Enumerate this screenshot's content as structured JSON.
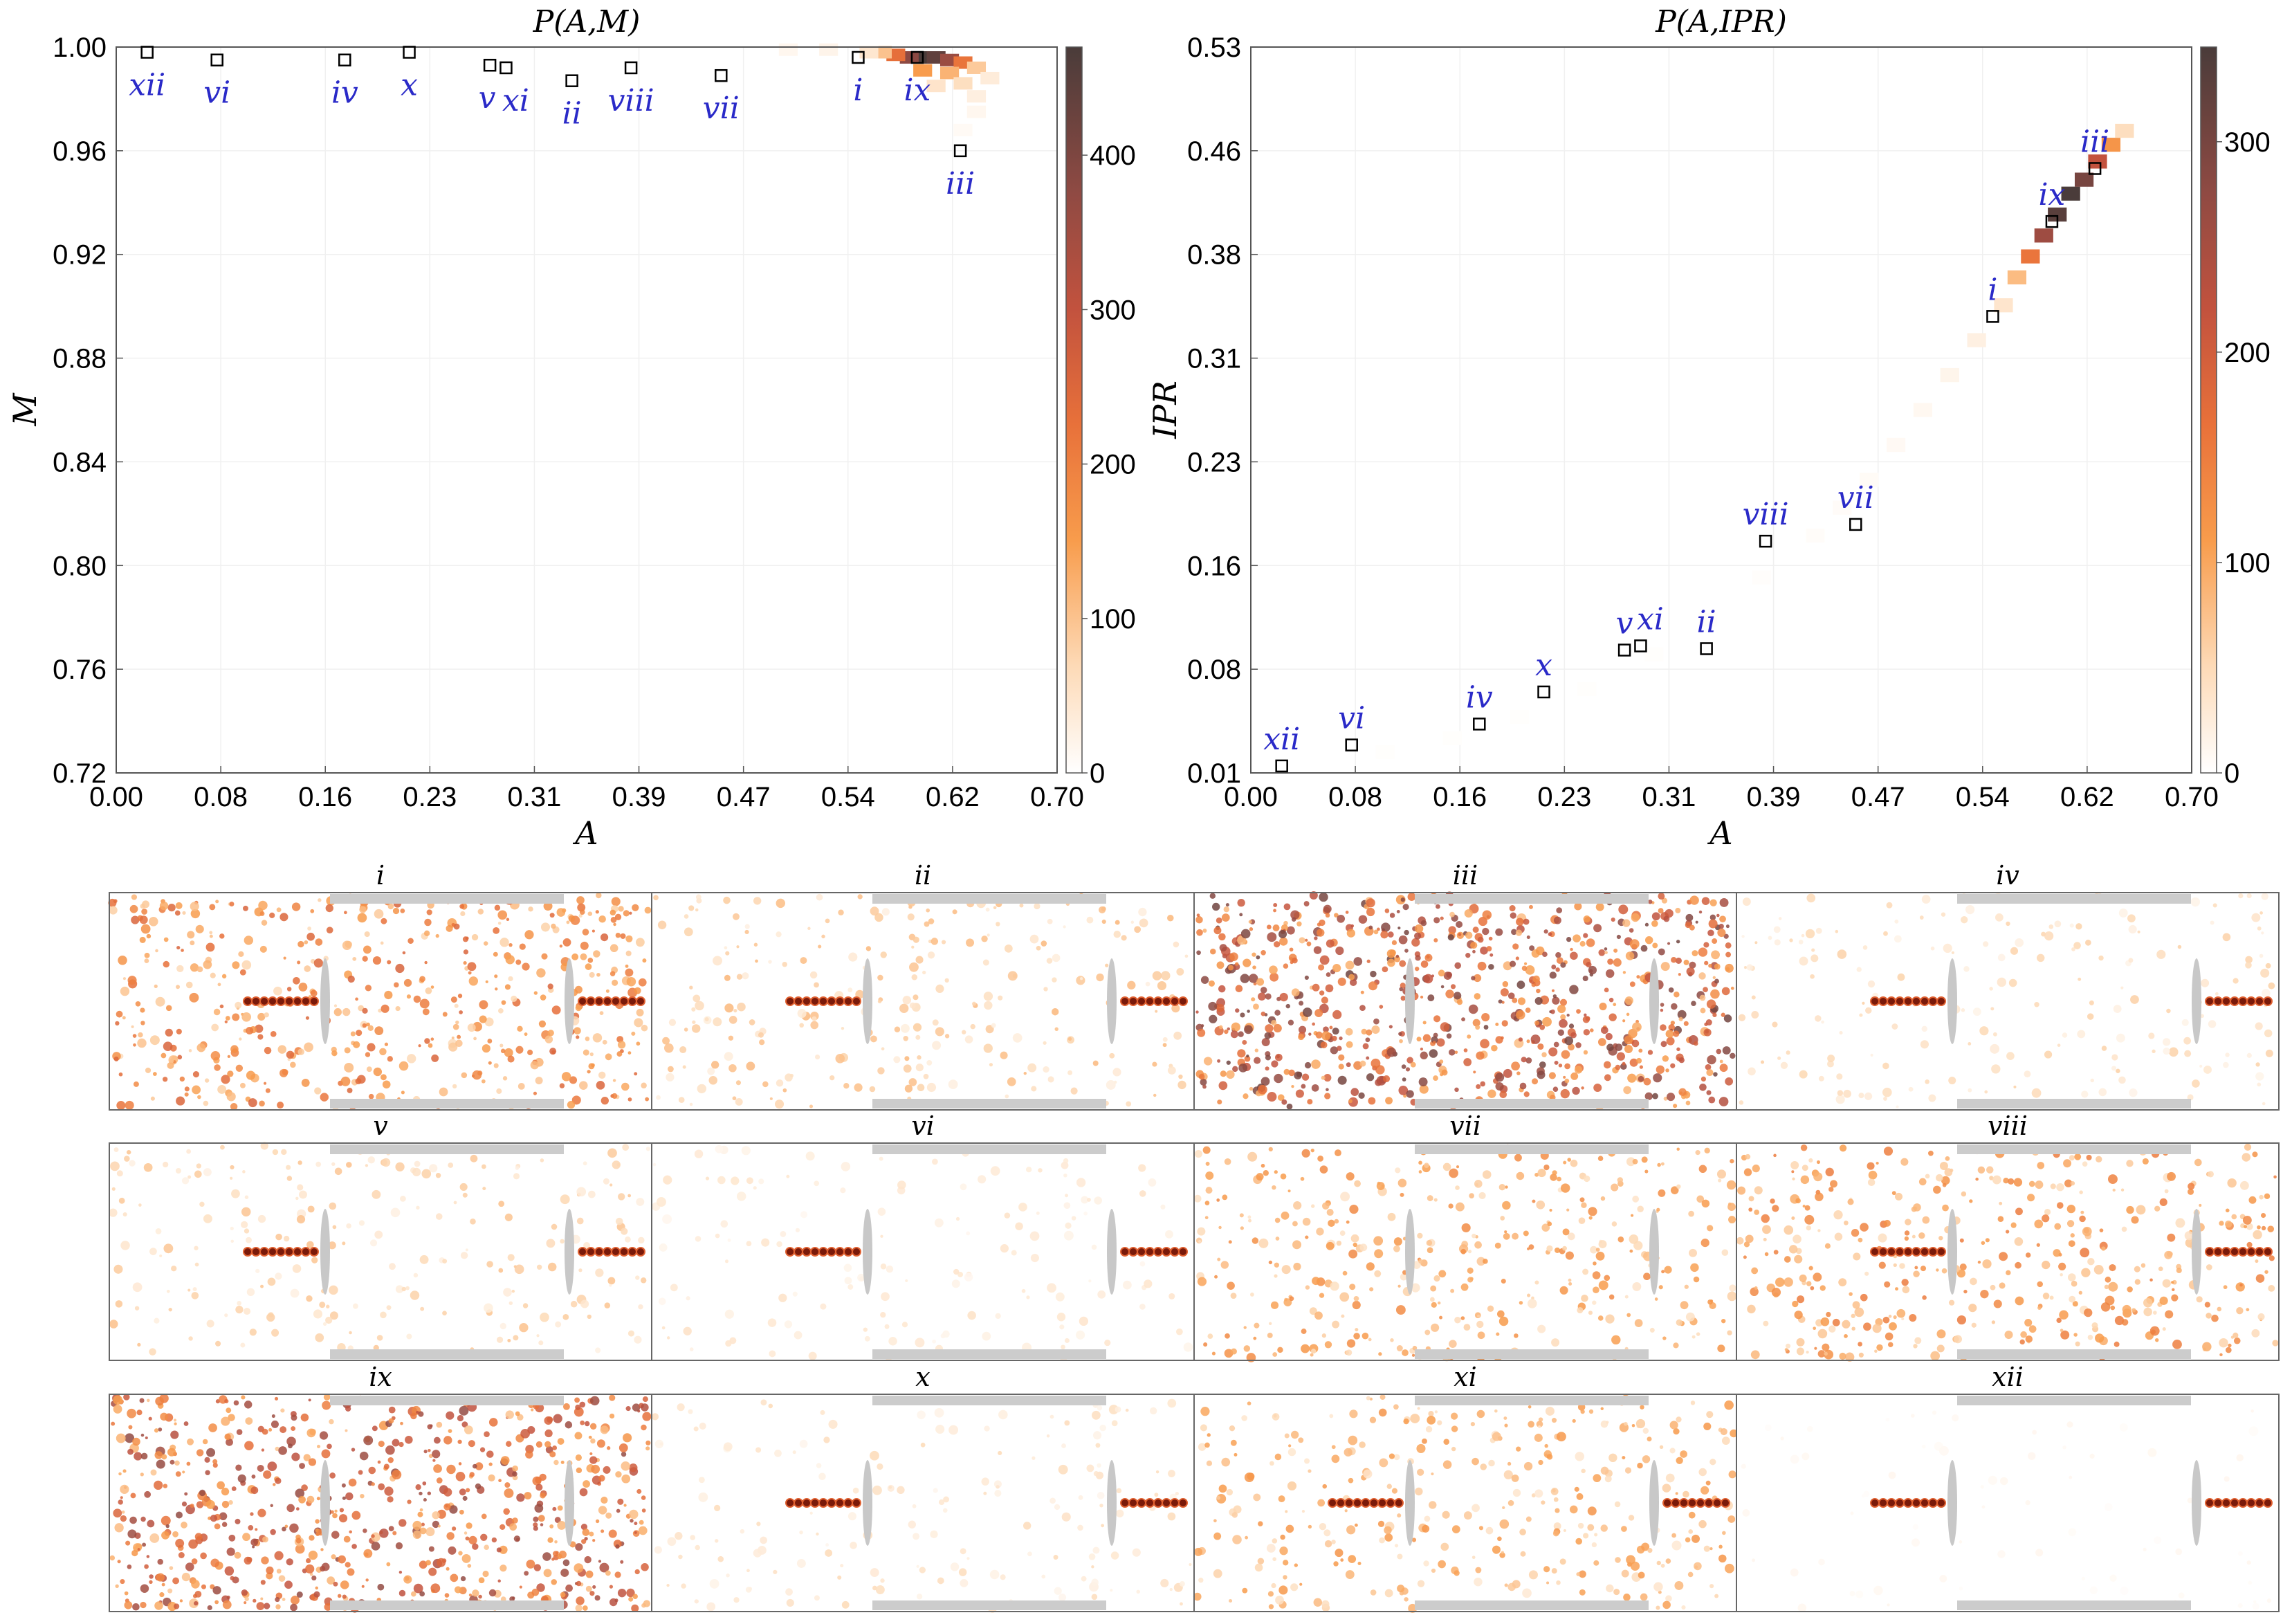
{
  "chart_data": [
    {
      "type": "heatmap",
      "title": "P(A,M)",
      "xlabel": "A",
      "ylabel": "M",
      "xlim": [
        0.0,
        0.7
      ],
      "ylim": [
        0.72,
        1.0
      ],
      "xticks": [
        "0.00",
        "0.08",
        "0.16",
        "0.23",
        "0.31",
        "0.39",
        "0.47",
        "0.54",
        "0.62",
        "0.70"
      ],
      "yticks": [
        "0.72",
        "0.76",
        "0.80",
        "0.84",
        "0.88",
        "0.92",
        "0.96",
        "1.00"
      ],
      "colorbar": {
        "min": 0,
        "max": 470,
        "ticks": [
          "0",
          "100",
          "200",
          "300",
          "400"
        ]
      },
      "density": [
        {
          "a": 0.6,
          "m": 0.996,
          "v": 470
        },
        {
          "a": 0.61,
          "m": 0.996,
          "v": 440
        },
        {
          "a": 0.59,
          "m": 0.996,
          "v": 380
        },
        {
          "a": 0.62,
          "m": 0.995,
          "v": 360
        },
        {
          "a": 0.58,
          "m": 0.997,
          "v": 230
        },
        {
          "a": 0.63,
          "m": 0.994,
          "v": 220
        },
        {
          "a": 0.57,
          "m": 0.998,
          "v": 100
        },
        {
          "a": 0.6,
          "m": 0.991,
          "v": 150
        },
        {
          "a": 0.62,
          "m": 0.99,
          "v": 120
        },
        {
          "a": 0.64,
          "m": 0.992,
          "v": 90
        },
        {
          "a": 0.56,
          "m": 0.998,
          "v": 45
        },
        {
          "a": 0.63,
          "m": 0.986,
          "v": 60
        },
        {
          "a": 0.61,
          "m": 0.985,
          "v": 50
        },
        {
          "a": 0.64,
          "m": 0.981,
          "v": 30
        },
        {
          "a": 0.65,
          "m": 0.988,
          "v": 35
        },
        {
          "a": 0.5,
          "m": 0.999,
          "v": 15
        },
        {
          "a": 0.53,
          "m": 0.999,
          "v": 20
        },
        {
          "a": 0.64,
          "m": 0.975,
          "v": 15
        },
        {
          "a": 0.63,
          "m": 0.968,
          "v": 10
        }
      ],
      "points": [
        {
          "label": "xii",
          "a": 0.023,
          "m": 0.998
        },
        {
          "label": "vi",
          "a": 0.075,
          "m": 0.995
        },
        {
          "label": "iv",
          "a": 0.17,
          "m": 0.995
        },
        {
          "label": "x",
          "a": 0.218,
          "m": 0.998
        },
        {
          "label": "v",
          "a": 0.278,
          "m": 0.993
        },
        {
          "label": "xi",
          "a": 0.29,
          "m": 0.992
        },
        {
          "label": "ii",
          "a": 0.339,
          "m": 0.987
        },
        {
          "label": "viii",
          "a": 0.383,
          "m": 0.992
        },
        {
          "label": "vii",
          "a": 0.45,
          "m": 0.989
        },
        {
          "label": "i",
          "a": 0.552,
          "m": 0.996
        },
        {
          "label": "ix",
          "a": 0.596,
          "m": 0.996
        },
        {
          "label": "iii",
          "a": 0.628,
          "m": 0.96
        }
      ]
    },
    {
      "type": "heatmap",
      "title": "P(A,IPR)",
      "xlabel": "A",
      "ylabel": "IPR",
      "xlim": [
        0.0,
        0.7
      ],
      "ylim": [
        0.01,
        0.53
      ],
      "xticks": [
        "0.00",
        "0.08",
        "0.16",
        "0.23",
        "0.31",
        "0.39",
        "0.47",
        "0.54",
        "0.62",
        "0.70"
      ],
      "yticks": [
        "0.01",
        "0.08",
        "0.16",
        "0.23",
        "0.31",
        "0.38",
        "0.46",
        "0.53"
      ],
      "colorbar": {
        "min": 0,
        "max": 345,
        "ticks": [
          "0",
          "100",
          "200",
          "300"
        ]
      },
      "density": [
        {
          "a": 0.61,
          "ipr": 0.425,
          "v": 345
        },
        {
          "a": 0.6,
          "ipr": 0.41,
          "v": 330
        },
        {
          "a": 0.62,
          "ipr": 0.435,
          "v": 300
        },
        {
          "a": 0.59,
          "ipr": 0.395,
          "v": 260
        },
        {
          "a": 0.63,
          "ipr": 0.448,
          "v": 220
        },
        {
          "a": 0.58,
          "ipr": 0.38,
          "v": 160
        },
        {
          "a": 0.64,
          "ipr": 0.46,
          "v": 120
        },
        {
          "a": 0.57,
          "ipr": 0.365,
          "v": 80
        },
        {
          "a": 0.65,
          "ipr": 0.47,
          "v": 45
        },
        {
          "a": 0.56,
          "ipr": 0.345,
          "v": 35
        },
        {
          "a": 0.54,
          "ipr": 0.32,
          "v": 20
        },
        {
          "a": 0.52,
          "ipr": 0.295,
          "v": 14
        },
        {
          "a": 0.5,
          "ipr": 0.27,
          "v": 10
        },
        {
          "a": 0.48,
          "ipr": 0.245,
          "v": 8
        },
        {
          "a": 0.46,
          "ipr": 0.22,
          "v": 6
        },
        {
          "a": 0.44,
          "ipr": 0.2,
          "v": 5
        },
        {
          "a": 0.42,
          "ipr": 0.18,
          "v": 4
        },
        {
          "a": 0.38,
          "ipr": 0.15,
          "v": 3
        },
        {
          "a": 0.34,
          "ipr": 0.12,
          "v": 3
        },
        {
          "a": 0.3,
          "ipr": 0.095,
          "v": 2
        },
        {
          "a": 0.25,
          "ipr": 0.07,
          "v": 2
        },
        {
          "a": 0.2,
          "ipr": 0.05,
          "v": 2
        },
        {
          "a": 0.15,
          "ipr": 0.035,
          "v": 2
        },
        {
          "a": 0.1,
          "ipr": 0.025,
          "v": 2
        }
      ],
      "points": [
        {
          "label": "xii",
          "a": 0.023,
          "ipr": 0.015
        },
        {
          "label": "vi",
          "a": 0.075,
          "ipr": 0.03
        },
        {
          "label": "iv",
          "a": 0.17,
          "ipr": 0.045
        },
        {
          "label": "x",
          "a": 0.218,
          "ipr": 0.068
        },
        {
          "label": "v",
          "a": 0.278,
          "ipr": 0.098
        },
        {
          "label": "xi",
          "a": 0.29,
          "ipr": 0.101
        },
        {
          "label": "ii",
          "a": 0.339,
          "ipr": 0.099
        },
        {
          "label": "viii",
          "a": 0.383,
          "ipr": 0.176
        },
        {
          "label": "vii",
          "a": 0.45,
          "ipr": 0.188
        },
        {
          "label": "i",
          "a": 0.552,
          "ipr": 0.337
        },
        {
          "label": "ix",
          "a": 0.596,
          "ipr": 0.405
        },
        {
          "label": "iii",
          "a": 0.628,
          "ipr": 0.443
        }
      ]
    }
  ],
  "panels": [
    {
      "label": "i",
      "intensity": 0.55
    },
    {
      "label": "ii",
      "intensity": 0.25
    },
    {
      "label": "iii",
      "intensity": 0.9
    },
    {
      "label": "iv",
      "intensity": 0.18
    },
    {
      "label": "v",
      "intensity": 0.22
    },
    {
      "label": "vi",
      "intensity": 0.12
    },
    {
      "label": "vii",
      "intensity": 0.4
    },
    {
      "label": "viii",
      "intensity": 0.45
    },
    {
      "label": "ix",
      "intensity": 0.8
    },
    {
      "label": "x",
      "intensity": 0.15
    },
    {
      "label": "xi",
      "intensity": 0.35
    },
    {
      "label": "xii",
      "intensity": 0.04
    }
  ]
}
